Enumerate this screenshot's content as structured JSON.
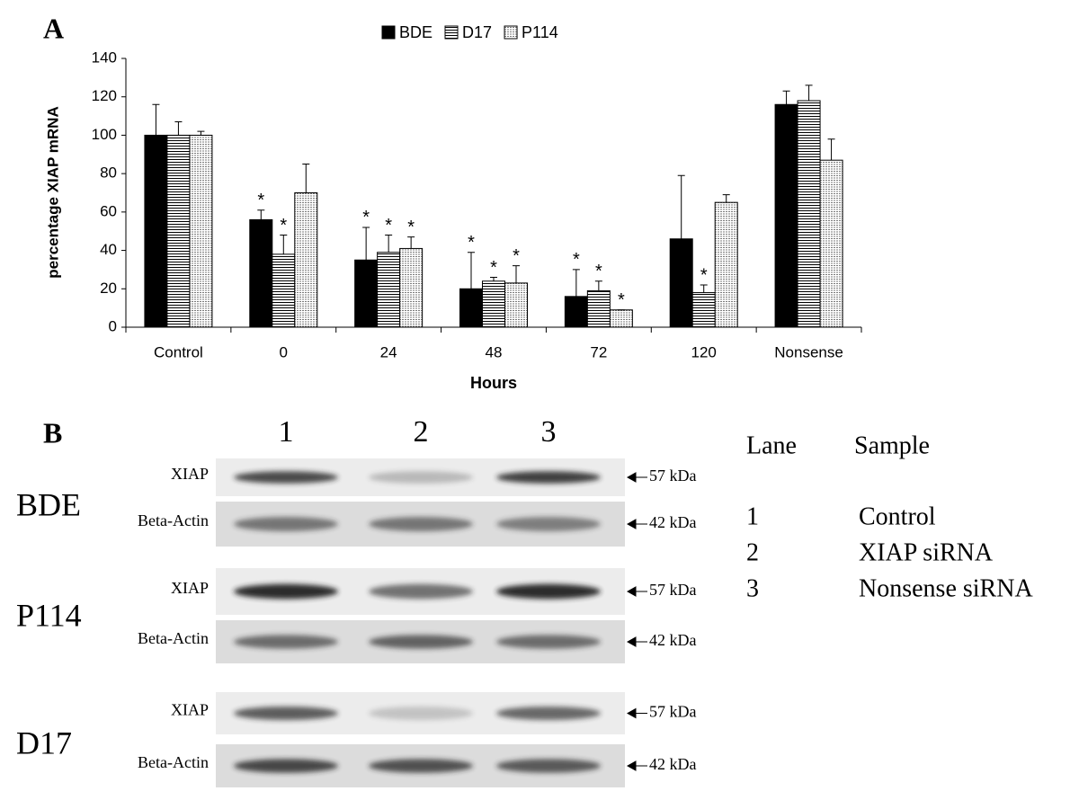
{
  "chart_data": {
    "type": "bar",
    "panel_label": "A",
    "ylabel": "percentage XIAP mRNA",
    "xlabel": "Hours",
    "categories": [
      "Control",
      "0",
      "24",
      "48",
      "72",
      "120",
      "Nonsense"
    ],
    "series": [
      {
        "name": "BDE",
        "color": "#000000",
        "values": [
          100,
          56,
          35,
          20,
          16,
          46,
          116
        ],
        "errors": [
          16,
          5,
          17,
          19,
          14,
          33,
          7
        ],
        "annotations": [
          null,
          "*",
          "*",
          "*",
          "*",
          null,
          null
        ]
      },
      {
        "name": "D17",
        "color": "#ffffff",
        "pattern": "hlines",
        "values": [
          100,
          38,
          39,
          24,
          19,
          18,
          118
        ],
        "errors": [
          7,
          10,
          9,
          2,
          5,
          4,
          8
        ],
        "annotations": [
          null,
          "*",
          "*",
          "*",
          "*",
          "*",
          null
        ]
      },
      {
        "name": "P114",
        "color": "#ffffff",
        "pattern": "fine-hlines",
        "values": [
          100,
          70,
          41,
          23,
          9,
          65,
          87
        ],
        "errors": [
          2,
          15,
          6,
          9,
          0,
          4,
          11
        ],
        "annotations": [
          null,
          null,
          "*",
          "*",
          "*",
          null,
          null
        ]
      }
    ],
    "ylim": [
      0,
      140
    ],
    "yticks": [
      0,
      20,
      40,
      60,
      80,
      100,
      120,
      140
    ],
    "grid": false,
    "legend": "top"
  },
  "panel_b": {
    "label": "B",
    "lanes": [
      "1",
      "2",
      "3"
    ],
    "groups": [
      {
        "name": "BDE",
        "blots": [
          {
            "label": "XIAP",
            "size": "57 kDa"
          },
          {
            "label": "Beta-Actin",
            "size": "42 kDa"
          }
        ]
      },
      {
        "name": "P114",
        "blots": [
          {
            "label": "XIAP",
            "size": "57 kDa"
          },
          {
            "label": "Beta-Actin",
            "size": "42 kDa"
          }
        ]
      },
      {
        "name": "D17",
        "blots": [
          {
            "label": "XIAP",
            "size": "57 kDa"
          },
          {
            "label": "Beta-Actin",
            "size": "42 kDa"
          }
        ]
      }
    ],
    "key": {
      "headers": [
        "Lane",
        "Sample"
      ],
      "rows": [
        [
          "1",
          "Control"
        ],
        [
          "2",
          "XIAP siRNA"
        ],
        [
          "3",
          "Nonsense siRNA"
        ]
      ]
    }
  }
}
